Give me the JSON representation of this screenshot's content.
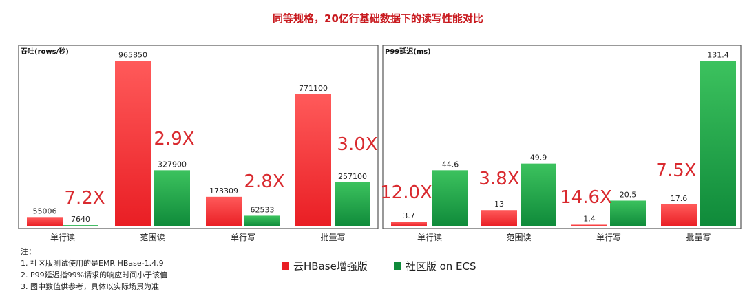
{
  "title": "同等规格，20亿行基础数据下的读写性能对比",
  "colors": {
    "cloud_top": "#ff5a5a",
    "cloud_bottom": "#e91e24",
    "community_top": "#3cc25e",
    "community_bottom": "#0f8a3a",
    "ratio_text": "#d92a2f",
    "frame": "#555555"
  },
  "legend": {
    "cloud": "云HBase增强版",
    "community": "社区版 on ECS"
  },
  "notes": {
    "heading": "注：",
    "items": [
      "1.   社区版测试使用的是EMR HBase-1.4.9",
      "2.   P99延迟指99%请求的响应时间小于该值",
      "3.   图中数值供参考，具体以实际场景为准"
    ]
  },
  "chart_data": [
    {
      "type": "bar",
      "title": "吞吐(rows/秒)",
      "categories": [
        "单行读",
        "范围读",
        "单行写",
        "批量写"
      ],
      "series": [
        {
          "name": "云HBase增强版",
          "values": [
            55006,
            965850,
            173309,
            771100
          ],
          "labels": [
            "55006",
            "965850",
            "173309",
            "771100"
          ]
        },
        {
          "name": "社区版 on ECS",
          "values": [
            7640,
            327900,
            62533,
            257100
          ],
          "labels": [
            "7640",
            "327900",
            "62533",
            "257100"
          ]
        }
      ],
      "ratios": [
        "7.2X",
        "2.9X",
        "2.8X",
        "3.0X"
      ],
      "ylim": [
        0,
        1000000
      ]
    },
    {
      "type": "bar",
      "title": "P99延迟(ms)",
      "categories": [
        "单行读",
        "范围读",
        "单行写",
        "批量写"
      ],
      "series": [
        {
          "name": "云HBase增强版",
          "values": [
            3.7,
            13,
            1.4,
            17.6
          ],
          "labels": [
            "3.7",
            "13",
            "1.4",
            "17.6"
          ]
        },
        {
          "name": "社区版 on ECS",
          "values": [
            44.6,
            49.9,
            20.5,
            131.4
          ],
          "labels": [
            "44.6",
            "49.9",
            "20.5",
            "131.4"
          ]
        }
      ],
      "ratios": [
        "12.0X",
        "3.8X",
        "14.6X",
        "7.5X"
      ],
      "ylim": [
        0,
        136
      ]
    }
  ]
}
